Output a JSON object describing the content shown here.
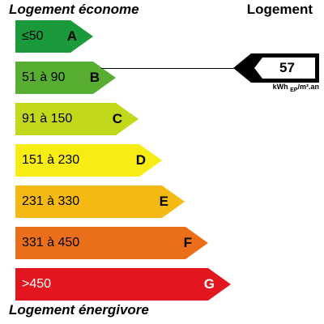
{
  "header": {
    "top_left": "Logement économe",
    "top_right": "Logement"
  },
  "footer": {
    "bottom_left": "Logement énergivore"
  },
  "bands": [
    {
      "range": "≤50",
      "letter": "A",
      "color": "#1a9a3a"
    },
    {
      "range": "51 à 90",
      "letter": "B",
      "color": "#57ae30"
    },
    {
      "range": "91 à 150",
      "letter": "C",
      "color": "#c3d81a"
    },
    {
      "range": "151 à 230",
      "letter": "D",
      "color": "#f7ec13"
    },
    {
      "range": "231 à 330",
      "letter": "E",
      "color": "#f5b914"
    },
    {
      "range": "331 à 450",
      "letter": "F",
      "color": "#eb6f1b"
    },
    {
      "range": ">450",
      "letter": "G",
      "color": "#e3151f"
    }
  ],
  "indicator": {
    "value": "57",
    "unit_main": "kWh",
    "unit_sub": "EP",
    "unit_rest": "/m².an",
    "band": "B"
  }
}
